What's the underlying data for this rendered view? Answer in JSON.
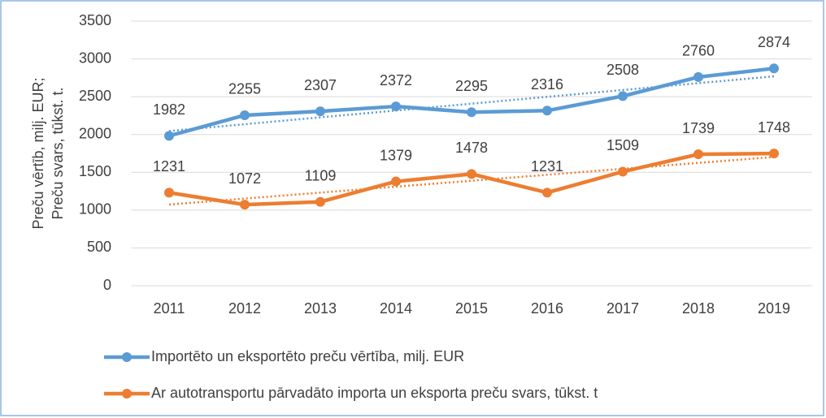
{
  "chart_data": {
    "type": "line",
    "ylabel": [
      "Preču vērtīb, milj. EUR;",
      "Preču svars, tūkst. t."
    ],
    "categories": [
      "2011",
      "2012",
      "2013",
      "2014",
      "2015",
      "2016",
      "2017",
      "2018",
      "2019"
    ],
    "series": [
      {
        "name": "Importēto un eksportēto preču vērtība, milj. EUR",
        "color": "#5b9bd5",
        "values": [
          1982,
          2255,
          2307,
          2372,
          2295,
          2316,
          2508,
          2760,
          2874
        ]
      },
      {
        "name": "Ar autotransportu pārvadāto importa un eksporta preču svars, tūkst. t",
        "color": "#ed7d31",
        "values": [
          1231,
          1072,
          1109,
          1379,
          1478,
          1231,
          1509,
          1739,
          1748
        ]
      }
    ],
    "ylim": [
      0,
      3500
    ],
    "yticks": [
      0,
      500,
      1000,
      1500,
      2000,
      2500,
      3000,
      3500
    ],
    "grid": true,
    "trendline": true,
    "data_labels": true,
    "legend": "bottom"
  }
}
